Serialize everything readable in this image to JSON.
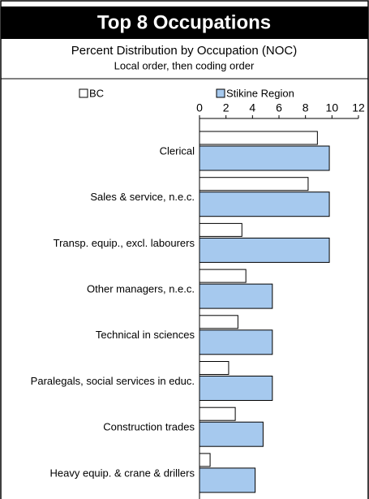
{
  "chart_data": {
    "type": "hbar",
    "title": "Top 8 Occupations",
    "subtitle": "Percent Distribution by Occupation (NOC)",
    "note": "Local order, then coding order",
    "categories": [
      "Clerical",
      "Sales & service, n.e.c.",
      "Transp. equip., excl. labourers",
      "Other managers, n.e.c.",
      "Technical in sciences",
      "Paralegals, social services in educ.",
      "Construction trades",
      "Heavy equip. & crane & drillers"
    ],
    "series": [
      {
        "name": "BC",
        "color": "#ffffff",
        "values": [
          8.9,
          8.2,
          3.2,
          3.5,
          2.9,
          2.2,
          2.7,
          0.8
        ]
      },
      {
        "name": "Stikine Region",
        "color": "#a6c9ee",
        "values": [
          9.8,
          9.8,
          9.8,
          5.5,
          5.5,
          5.5,
          4.8,
          4.2
        ]
      }
    ],
    "xlim": [
      0,
      12
    ],
    "xticks": [
      0,
      2,
      4,
      6,
      8,
      10,
      12
    ],
    "legend": "top"
  }
}
